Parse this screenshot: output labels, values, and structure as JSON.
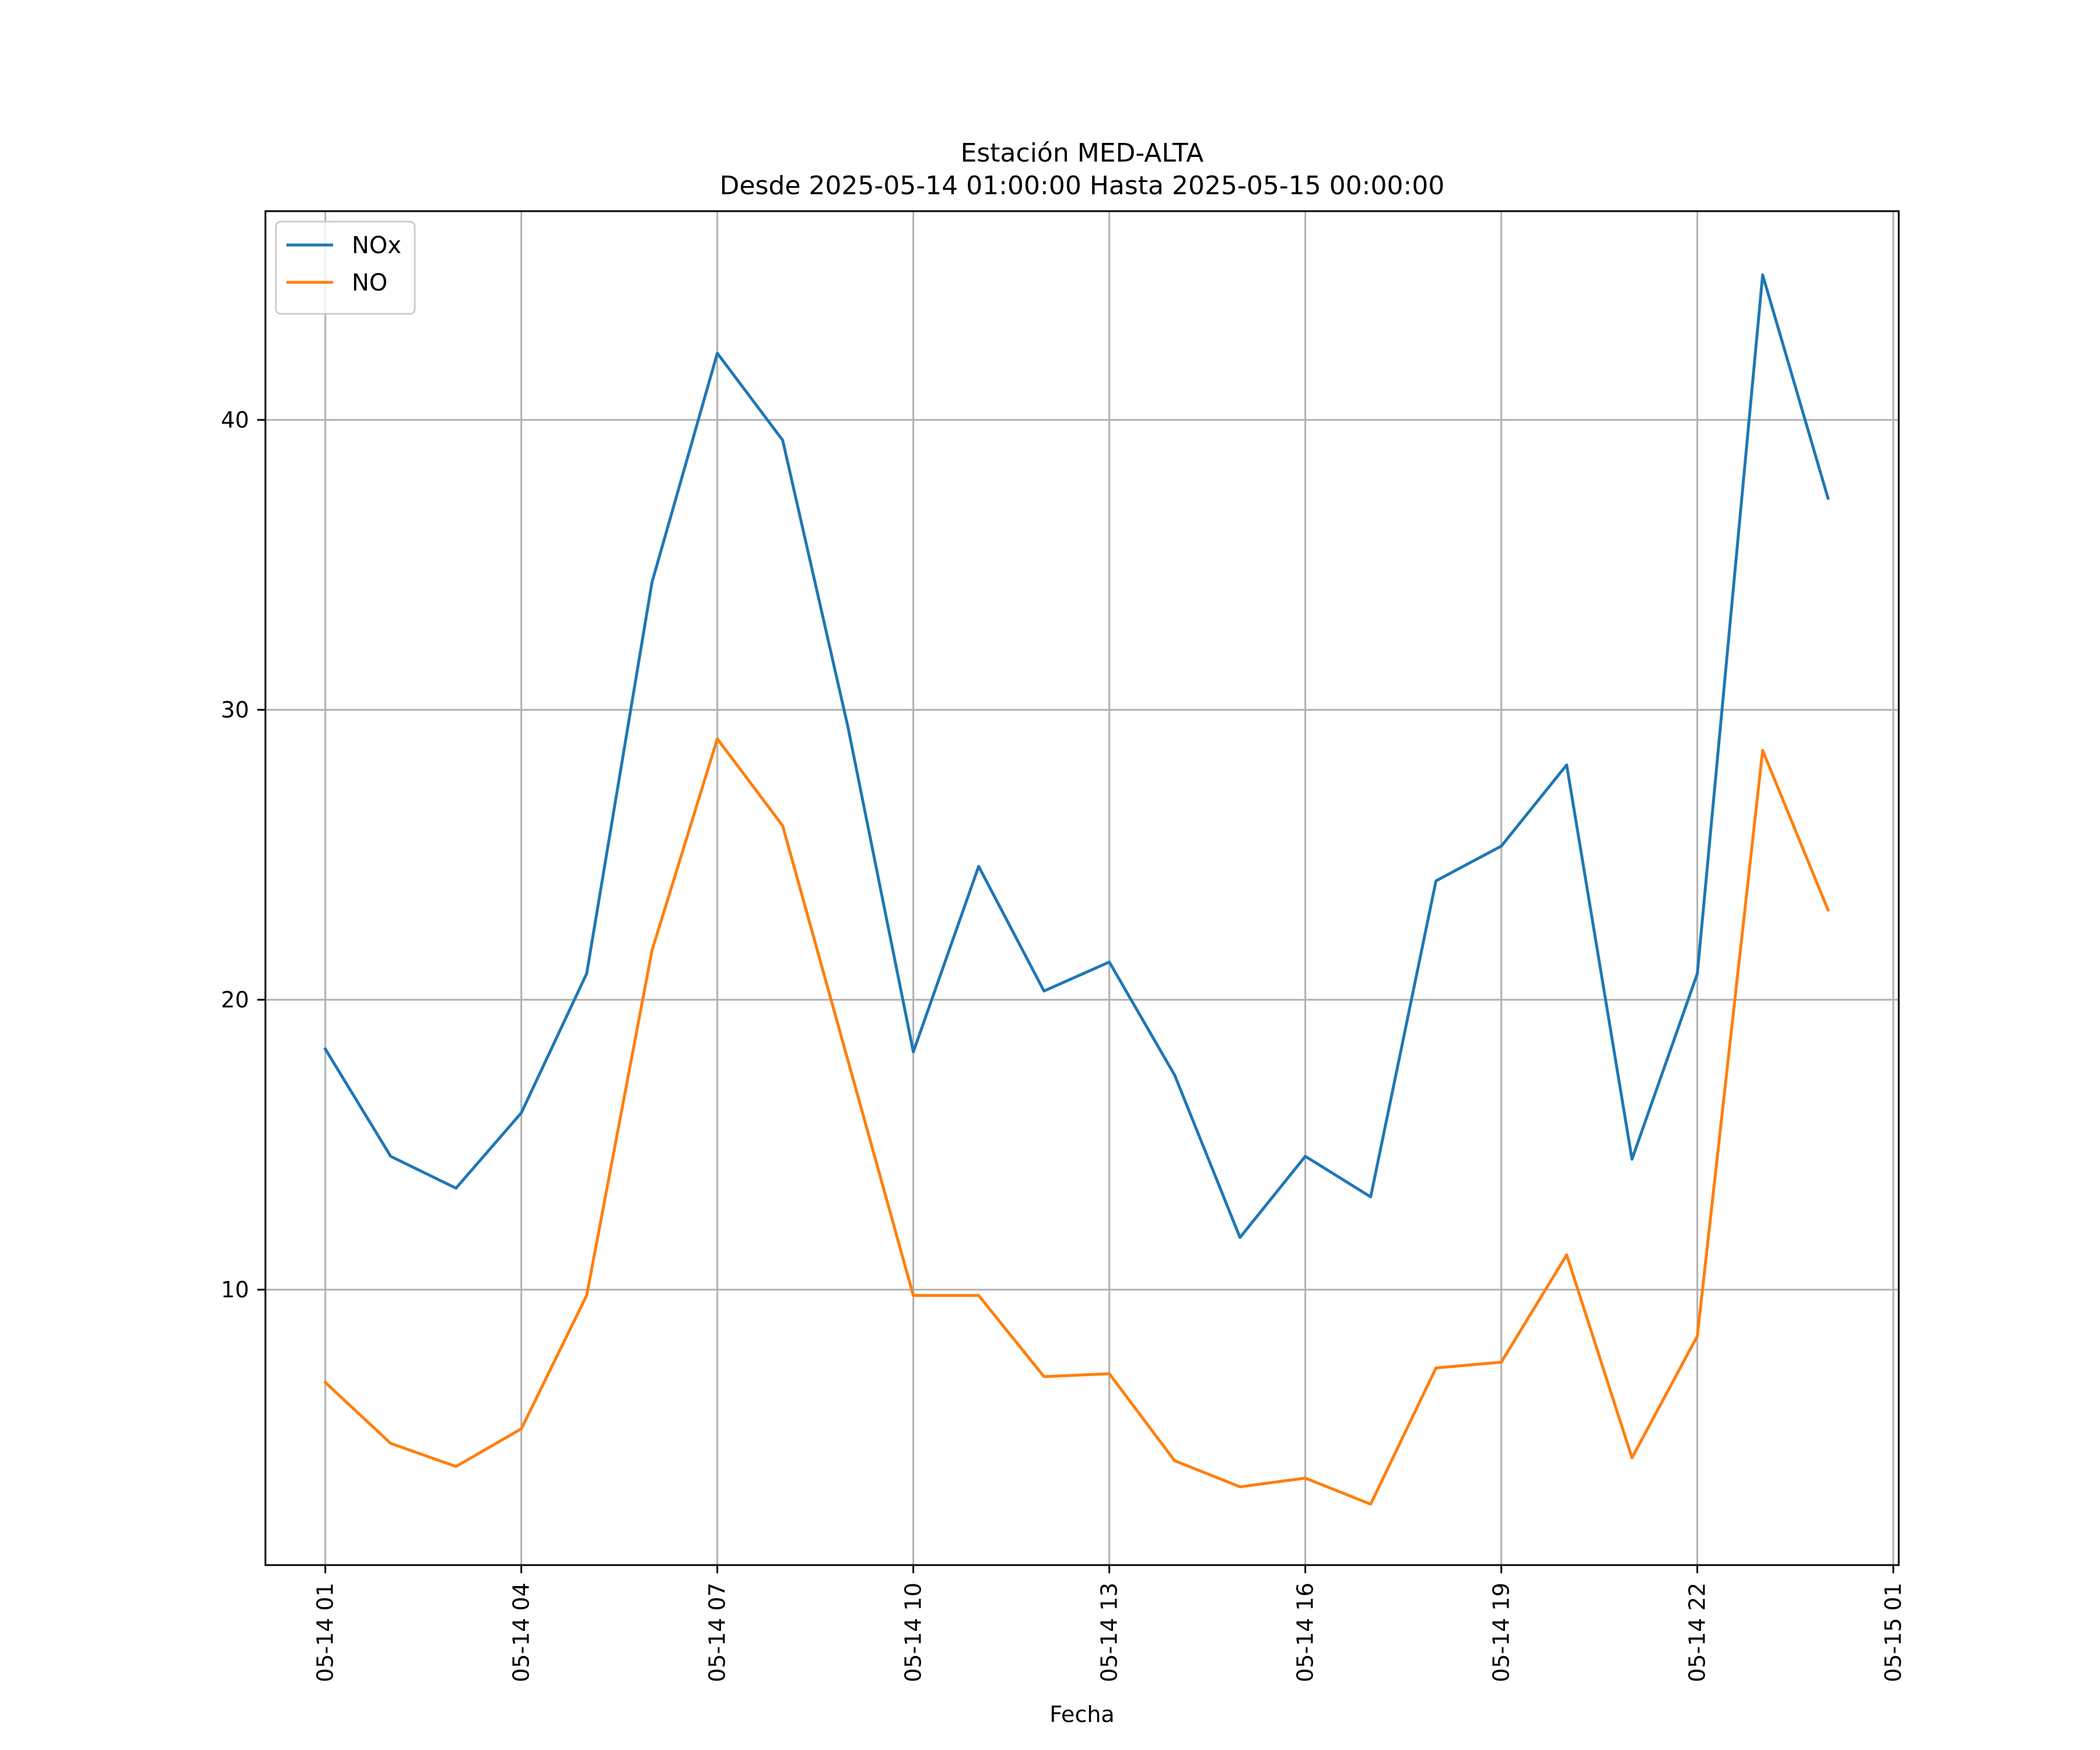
{
  "chart_data": {
    "type": "line",
    "title": "Estación MED-ALTA",
    "subtitle": "Desde 2025-05-14 01:00:00 Hasta 2025-05-15 00:00:00",
    "xlabel": "Fecha",
    "ylabel": "",
    "x": [
      "2025-05-14 01:00",
      "2025-05-14 02:00",
      "2025-05-14 03:00",
      "2025-05-14 04:00",
      "2025-05-14 05:00",
      "2025-05-14 06:00",
      "2025-05-14 07:00",
      "2025-05-14 08:00",
      "2025-05-14 09:00",
      "2025-05-14 10:00",
      "2025-05-14 11:00",
      "2025-05-14 12:00",
      "2025-05-14 13:00",
      "2025-05-14 14:00",
      "2025-05-14 15:00",
      "2025-05-14 16:00",
      "2025-05-14 17:00",
      "2025-05-14 18:00",
      "2025-05-14 19:00",
      "2025-05-14 20:00",
      "2025-05-14 21:00",
      "2025-05-14 22:00",
      "2025-05-14 23:00",
      "2025-05-15 00:00"
    ],
    "x_ticks": [
      "05-14 01",
      "05-14 04",
      "05-14 07",
      "05-14 10",
      "05-14 13",
      "05-14 16",
      "05-14 19",
      "05-14 22",
      "05-15 01"
    ],
    "x_tick_values": [
      "2025-05-14 01:00",
      "2025-05-14 04:00",
      "2025-05-14 07:00",
      "2025-05-14 10:00",
      "2025-05-14 13:00",
      "2025-05-14 16:00",
      "2025-05-14 19:00",
      "2025-05-14 22:00",
      "2025-05-15 01:00"
    ],
    "xlim": [
      "2025-05-14 00:05",
      "2025-05-15 01:05"
    ],
    "y_ticks": [
      10,
      20,
      30,
      40
    ],
    "ylim": [
      0.5,
      47.2
    ],
    "grid": true,
    "legend": "top-left",
    "series": [
      {
        "name": "NOx",
        "color": "#1f77b4",
        "values": [
          18.3,
          14.6,
          13.5,
          16.1,
          20.9,
          34.4,
          42.3,
          39.3,
          29.4,
          18.2,
          24.6,
          20.3,
          21.3,
          17.4,
          11.8,
          14.6,
          13.2,
          24.1,
          25.3,
          28.1,
          14.5,
          20.9,
          45.0,
          37.3
        ]
      },
      {
        "name": "NO",
        "color": "#ff7f0e",
        "values": [
          6.8,
          4.7,
          3.9,
          5.2,
          9.8,
          21.7,
          29.0,
          26.0,
          17.9,
          9.8,
          9.8,
          7.0,
          7.1,
          4.1,
          3.2,
          3.5,
          2.6,
          7.3,
          7.5,
          11.2,
          4.2,
          8.4,
          28.6,
          23.1
        ]
      }
    ]
  }
}
